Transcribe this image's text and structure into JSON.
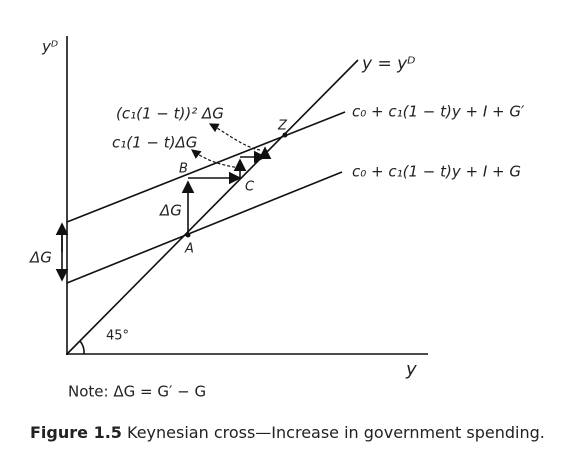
{
  "axes": {
    "y_label": "yᴰ",
    "x_label": "y"
  },
  "lines": {
    "diagonal": "y = yᴰ",
    "upper": "c₀ + c₁(1 − t)y + I + G′",
    "lower": "c₀ + c₁(1 − t)y + I + G",
    "angle": "45°"
  },
  "points": {
    "a": "A",
    "b": "B",
    "c": "C",
    "z": "Z"
  },
  "annotations": {
    "second_round": "(c₁(1 − t))² ΔG",
    "first_round": "c₁(1 − t)ΔG",
    "shift": "ΔG",
    "left_shift": "ΔG"
  },
  "note": "Note: ΔG = G′ − G",
  "figure": {
    "number": "Figure 1.5",
    "caption": "Keynesian cross—Increase in government spending."
  }
}
